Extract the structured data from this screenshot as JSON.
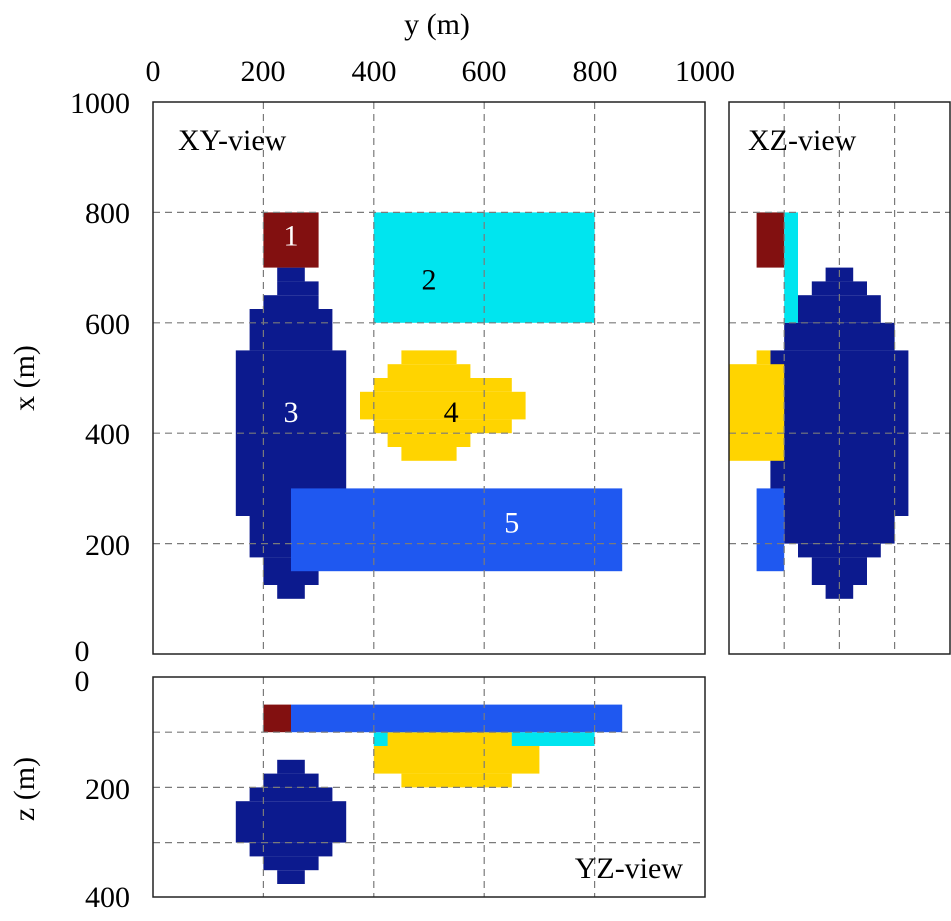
{
  "figure": {
    "colors": {
      "body1": "#821010",
      "body2": "#00e5ef",
      "body3": "#0c1a8e",
      "body4": "#ffd400",
      "body5": "#1f58f0",
      "grid": "#7a7a7a",
      "frame": "#222222",
      "number_dark": "#000000",
      "number_light": "#ffffff"
    },
    "axes": {
      "y_title": "y (m)",
      "x_title": "x (m)",
      "z_title": "z (m)",
      "y_ticks": [
        "0",
        "200",
        "400",
        "600",
        "800",
        "1000"
      ],
      "x_ticks": [
        "1000",
        "800",
        "600",
        "400",
        "200",
        "0"
      ],
      "z_ticks": [
        "0",
        "200",
        "400"
      ]
    },
    "panels": {
      "xy": {
        "label": "XY-view"
      },
      "xz": {
        "label": "XZ-view"
      },
      "yz": {
        "label": "YZ-view"
      }
    },
    "bodies": [
      {
        "id": "1",
        "label": "1",
        "label_color": "light",
        "y": [
          200,
          300
        ],
        "x": [
          700,
          800
        ],
        "z": [
          50,
          100
        ]
      },
      {
        "id": "2",
        "label": "2",
        "label_color": "dark",
        "y": [
          400,
          800
        ],
        "x": [
          600,
          800
        ],
        "z": [
          100,
          125
        ]
      },
      {
        "id": "3",
        "label": "3",
        "label_color": "light",
        "xy_rows": [
          {
            "x": [
              675,
              700
            ],
            "y": [
              225,
              275
            ]
          },
          {
            "x": [
              650,
              675
            ],
            "y": [
              225,
              300
            ]
          },
          {
            "x": [
              625,
              650
            ],
            "y": [
              200,
              300
            ]
          },
          {
            "x": [
              550,
              625
            ],
            "y": [
              175,
              325
            ]
          },
          {
            "x": [
              250,
              550
            ],
            "y": [
              150,
              350
            ]
          },
          {
            "x": [
              175,
              250
            ],
            "y": [
              175,
              325
            ]
          },
          {
            "x": [
              125,
              175
            ],
            "y": [
              200,
              300
            ]
          },
          {
            "x": [
              100,
              125
            ],
            "y": [
              225,
              275
            ]
          }
        ],
        "xz_rows": [
          {
            "x": [
              675,
              700
            ],
            "z": [
              175,
              225
            ]
          },
          {
            "x": [
              650,
              675
            ],
            "z": [
              150,
              250
            ]
          },
          {
            "x": [
              600,
              650
            ],
            "z": [
              125,
              275
            ]
          },
          {
            "x": [
              550,
              600
            ],
            "z": [
              100,
              300
            ]
          },
          {
            "x": [
              250,
              550
            ],
            "z": [
              75,
              325
            ]
          },
          {
            "x": [
              200,
              250
            ],
            "z": [
              100,
              300
            ]
          },
          {
            "x": [
              175,
              200
            ],
            "z": [
              125,
              275
            ]
          },
          {
            "x": [
              125,
              175
            ],
            "z": [
              150,
              250
            ]
          },
          {
            "x": [
              100,
              125
            ],
            "z": [
              175,
              225
            ]
          }
        ],
        "yz_rows": [
          {
            "z": [
              150,
              175
            ],
            "y": [
              225,
              275
            ]
          },
          {
            "z": [
              175,
              200
            ],
            "y": [
              200,
              300
            ]
          },
          {
            "z": [
              200,
              225
            ],
            "y": [
              175,
              325
            ]
          },
          {
            "z": [
              225,
              300
            ],
            "y": [
              150,
              350
            ]
          },
          {
            "z": [
              300,
              325
            ],
            "y": [
              175,
              325
            ]
          },
          {
            "z": [
              325,
              350
            ],
            "y": [
              200,
              300
            ]
          },
          {
            "z": [
              350,
              375
            ],
            "y": [
              225,
              275
            ]
          }
        ]
      },
      {
        "id": "4",
        "label": "4",
        "label_color": "dark",
        "xy_rows": [
          {
            "x": [
              525,
              550
            ],
            "y": [
              450,
              550
            ]
          },
          {
            "x": [
              500,
              525
            ],
            "y": [
              425,
              575
            ]
          },
          {
            "x": [
              475,
              500
            ],
            "y": [
              400,
              650
            ]
          },
          {
            "x": [
              425,
              475
            ],
            "y": [
              375,
              675
            ]
          },
          {
            "x": [
              400,
              425
            ],
            "y": [
              400,
              650
            ]
          },
          {
            "x": [
              375,
              400
            ],
            "y": [
              425,
              575
            ]
          },
          {
            "x": [
              350,
              375
            ],
            "y": [
              450,
              550
            ]
          }
        ],
        "xz_rows": [
          {
            "x": [
              525,
              550
            ],
            "z": [
              50,
              75
            ]
          },
          {
            "x": [
              350,
              525
            ],
            "z": [
              0,
              100
            ]
          }
        ],
        "yz_rows": [
          {
            "z": [
              100,
              125
            ],
            "y": [
              425,
              650
            ]
          },
          {
            "z": [
              125,
              175
            ],
            "y": [
              400,
              700
            ]
          },
          {
            "z": [
              175,
              200
            ],
            "y": [
              450,
              650
            ]
          }
        ]
      },
      {
        "id": "5",
        "label": "5",
        "label_color": "light",
        "y": [
          250,
          850
        ],
        "x": [
          150,
          300
        ],
        "z": [
          50,
          100
        ]
      }
    ]
  }
}
